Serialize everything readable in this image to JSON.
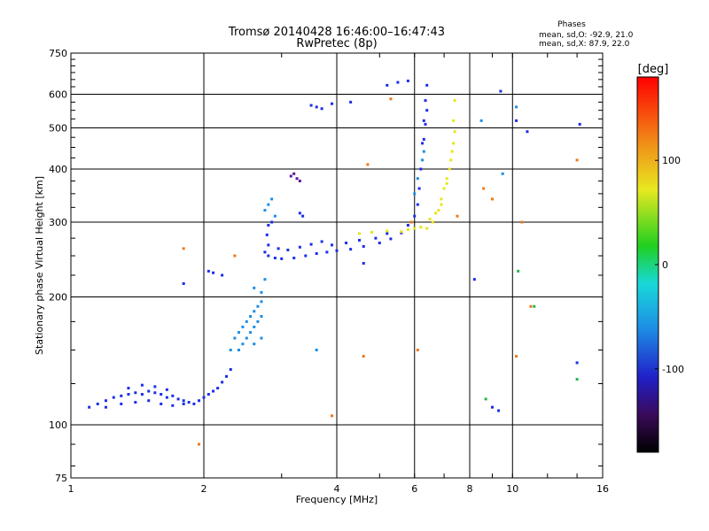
{
  "chart_data": {
    "type": "scatter",
    "title": "Tromsø 20140428 16:46:00–16:47:43",
    "subtitle": "RwPretec (8p)",
    "xlabel": "Frequency [MHz]",
    "ylabel": "Stationary phase Virtual Height [km]",
    "xscale": "log",
    "yscale": "log",
    "xlim": [
      1,
      16
    ],
    "ylim": [
      75,
      750
    ],
    "xticks": [
      1,
      2,
      4,
      6,
      8,
      10,
      16
    ],
    "yticks": [
      75,
      100,
      200,
      300,
      400,
      500,
      600,
      750
    ],
    "xtick_labels": [
      "1",
      "2",
      "4",
      "6",
      "8",
      "10",
      "16"
    ],
    "ytick_labels": [
      "75",
      "100",
      "200",
      "300",
      "400",
      "500",
      "600",
      "750"
    ],
    "grid": true,
    "legend": {
      "title": "Phases",
      "lines": [
        "mean, sd,O: -92.9, 21.0",
        "mean, sd,X: 87.9, 22.0"
      ],
      "placement": "top-right"
    },
    "colorbar": {
      "label": "[deg]",
      "range": [
        -180,
        180
      ],
      "ticks": [
        100,
        0,
        -100
      ],
      "tick_labels": [
        "100",
        "0",
        "-100"
      ],
      "colormap": "rainbow (black→purple→blue→cyan→green→yellow→orange→red)"
    },
    "series": [
      {
        "phase": -100,
        "color": "#1a2ee8",
        "points": [
          [
            1.1,
            110
          ],
          [
            1.15,
            112
          ],
          [
            1.2,
            114
          ],
          [
            1.25,
            116
          ],
          [
            1.3,
            117
          ],
          [
            1.35,
            118
          ],
          [
            1.4,
            119
          ],
          [
            1.45,
            118
          ],
          [
            1.5,
            120
          ],
          [
            1.55,
            119
          ],
          [
            1.6,
            118
          ],
          [
            1.65,
            116
          ],
          [
            1.7,
            117
          ],
          [
            1.75,
            115
          ],
          [
            1.8,
            114
          ],
          [
            1.85,
            113
          ],
          [
            1.9,
            112
          ],
          [
            1.95,
            114
          ],
          [
            2.0,
            116
          ],
          [
            2.05,
            118
          ],
          [
            2.1,
            120
          ],
          [
            2.15,
            122
          ],
          [
            2.2,
            126
          ],
          [
            2.25,
            130
          ],
          [
            2.3,
            135
          ],
          [
            1.2,
            110
          ],
          [
            1.3,
            112
          ],
          [
            1.4,
            113
          ],
          [
            1.5,
            114
          ],
          [
            1.6,
            112
          ],
          [
            1.7,
            111
          ],
          [
            1.8,
            112
          ],
          [
            1.35,
            122
          ],
          [
            1.45,
            124
          ],
          [
            1.55,
            123
          ],
          [
            1.65,
            121
          ],
          [
            2.75,
            255
          ],
          [
            2.8,
            250
          ],
          [
            2.9,
            247
          ],
          [
            3.0,
            246
          ],
          [
            3.2,
            247
          ],
          [
            3.4,
            250
          ],
          [
            3.6,
            253
          ],
          [
            3.8,
            255
          ],
          [
            4.0,
            257
          ],
          [
            4.3,
            259
          ],
          [
            4.6,
            263
          ],
          [
            5.0,
            268
          ],
          [
            5.3,
            274
          ],
          [
            5.6,
            283
          ],
          [
            5.8,
            295
          ],
          [
            6.0,
            310
          ],
          [
            6.1,
            330
          ],
          [
            6.15,
            360
          ],
          [
            6.2,
            400
          ],
          [
            6.25,
            460
          ],
          [
            6.3,
            520
          ],
          [
            6.35,
            580
          ],
          [
            6.4,
            630
          ],
          [
            2.8,
            265
          ],
          [
            2.78,
            280
          ],
          [
            2.8,
            295
          ],
          [
            2.85,
            300
          ],
          [
            2.95,
            260
          ],
          [
            3.1,
            258
          ],
          [
            3.3,
            262
          ],
          [
            3.5,
            266
          ],
          [
            3.7,
            270
          ],
          [
            3.9,
            265
          ],
          [
            4.2,
            268
          ],
          [
            4.5,
            272
          ],
          [
            4.6,
            240
          ],
          [
            4.9,
            275
          ],
          [
            5.2,
            282
          ],
          [
            3.6,
            560
          ],
          [
            3.5,
            565
          ],
          [
            3.7,
            555
          ],
          [
            3.9,
            570
          ],
          [
            4.3,
            575
          ],
          [
            6.3,
            470
          ],
          [
            6.35,
            510
          ],
          [
            6.4,
            550
          ],
          [
            5.2,
            630
          ],
          [
            5.5,
            640
          ],
          [
            5.8,
            645
          ],
          [
            1.8,
            215
          ],
          [
            2.05,
            230
          ],
          [
            2.1,
            228
          ],
          [
            2.2,
            225
          ],
          [
            3.3,
            315
          ],
          [
            3.35,
            310
          ],
          [
            8.2,
            220
          ],
          [
            9.0,
            110
          ],
          [
            9.3,
            108
          ],
          [
            9.4,
            610
          ],
          [
            10.2,
            520
          ],
          [
            10.8,
            490
          ],
          [
            14.2,
            510
          ],
          [
            14.0,
            140
          ]
        ]
      },
      {
        "phase": -50,
        "color": "#1a8ee8",
        "points": [
          [
            2.3,
            150
          ],
          [
            2.35,
            160
          ],
          [
            2.4,
            165
          ],
          [
            2.45,
            170
          ],
          [
            2.5,
            175
          ],
          [
            2.55,
            180
          ],
          [
            2.6,
            185
          ],
          [
            2.65,
            190
          ],
          [
            2.7,
            195
          ],
          [
            2.55,
            165
          ],
          [
            2.6,
            170
          ],
          [
            2.65,
            175
          ],
          [
            2.7,
            180
          ],
          [
            2.5,
            160
          ],
          [
            2.45,
            155
          ],
          [
            2.4,
            150
          ],
          [
            2.6,
            155
          ],
          [
            2.7,
            160
          ],
          [
            2.6,
            210
          ],
          [
            2.7,
            205
          ],
          [
            2.75,
            220
          ],
          [
            2.8,
            330
          ],
          [
            2.85,
            340
          ],
          [
            2.75,
            320
          ],
          [
            2.9,
            310
          ],
          [
            6.0,
            350
          ],
          [
            6.1,
            380
          ],
          [
            6.25,
            420
          ],
          [
            6.3,
            440
          ],
          [
            3.6,
            150
          ],
          [
            8.5,
            520
          ],
          [
            9.5,
            390
          ],
          [
            10.2,
            560
          ]
        ]
      },
      {
        "phase": 90,
        "color": "#e6e61a",
        "points": [
          [
            6.4,
            290
          ],
          [
            6.6,
            300
          ],
          [
            6.8,
            320
          ],
          [
            6.9,
            340
          ],
          [
            7.0,
            360
          ],
          [
            7.1,
            380
          ],
          [
            7.2,
            400
          ],
          [
            7.25,
            420
          ],
          [
            7.3,
            440
          ],
          [
            7.35,
            460
          ],
          [
            7.4,
            490
          ],
          [
            6.5,
            305
          ],
          [
            6.7,
            315
          ],
          [
            6.9,
            330
          ],
          [
            7.1,
            370
          ],
          [
            5.6,
            285
          ],
          [
            5.8,
            288
          ],
          [
            6.0,
            290
          ],
          [
            6.2,
            292
          ],
          [
            4.5,
            282
          ],
          [
            4.8,
            284
          ],
          [
            5.2,
            286
          ],
          [
            7.35,
            520
          ],
          [
            7.4,
            580
          ]
        ]
      },
      {
        "phase": 150,
        "color": "#f07818",
        "points": [
          [
            1.8,
            260
          ],
          [
            2.35,
            250
          ],
          [
            3.9,
            105
          ],
          [
            4.6,
            145
          ],
          [
            4.7,
            410
          ],
          [
            5.3,
            585
          ],
          [
            5.9,
            300
          ],
          [
            6.1,
            150
          ],
          [
            7.5,
            310
          ],
          [
            8.6,
            360
          ],
          [
            9.0,
            340
          ],
          [
            10.5,
            300
          ],
          [
            11.0,
            190
          ],
          [
            14.0,
            420
          ],
          [
            1.95,
            90
          ],
          [
            10.2,
            145
          ]
        ]
      },
      {
        "phase": -140,
        "color": "#5a1aa0",
        "points": [
          [
            3.15,
            385
          ],
          [
            3.25,
            380
          ],
          [
            3.2,
            390
          ],
          [
            3.3,
            375
          ]
        ]
      },
      {
        "phase": 20,
        "color": "#22b84a",
        "points": [
          [
            11.2,
            190
          ],
          [
            14.0,
            128
          ],
          [
            8.7,
            115
          ],
          [
            10.3,
            230
          ]
        ]
      }
    ]
  }
}
